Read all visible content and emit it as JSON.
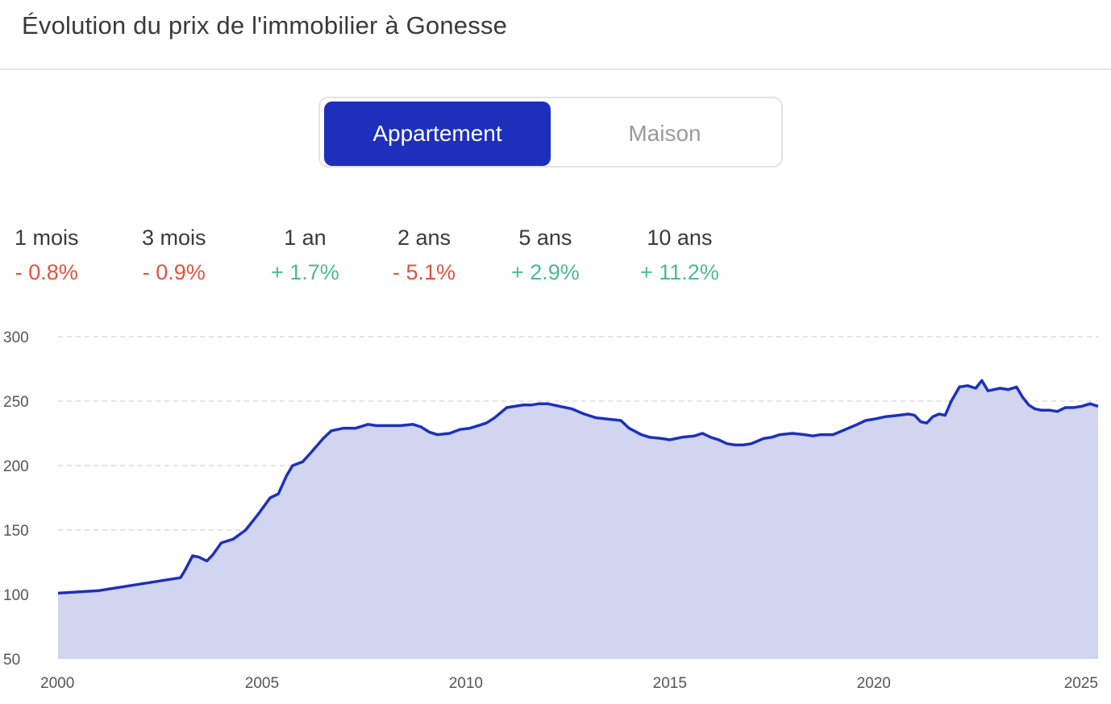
{
  "header": {
    "title": "Évolution du prix de l'immobilier à Gonesse"
  },
  "toggle": {
    "options": [
      {
        "label": "Appartement",
        "active": true
      },
      {
        "label": "Maison",
        "active": false
      }
    ],
    "active_color": "#1e30bb"
  },
  "stats": [
    {
      "label": "1 mois",
      "value": "- 0.8%",
      "trend": "down"
    },
    {
      "label": "3 mois",
      "value": "- 0.9%",
      "trend": "down"
    },
    {
      "label": "1 an",
      "value": "+ 1.7%",
      "trend": "up"
    },
    {
      "label": "2 ans",
      "value": "- 5.1%",
      "trend": "down"
    },
    {
      "label": "5 ans",
      "value": "+ 2.9%",
      "trend": "up"
    },
    {
      "label": "10 ans",
      "value": "+ 11.2%",
      "trend": "up"
    }
  ],
  "colors": {
    "down": "#e0533f",
    "up": "#4cbb8c",
    "line": "#1e30bb",
    "area": "#d1d5f0",
    "grid": "#dddddd"
  },
  "chart_data": {
    "type": "area",
    "title": "",
    "xlabel": "",
    "ylabel": "",
    "xlim": [
      2000,
      2025.5
    ],
    "ylim": [
      50,
      300
    ],
    "x_ticks": [
      "2000",
      "2005",
      "2010",
      "2015",
      "2020",
      "2025"
    ],
    "x_tick_values": [
      2000,
      2005,
      2010,
      2015,
      2020,
      2025
    ],
    "y_ticks": [
      "300",
      "250",
      "200",
      "150",
      "100",
      "50"
    ],
    "y_tick_values": [
      300,
      250,
      200,
      150,
      100,
      50
    ],
    "grid": true,
    "series": [
      {
        "x": [
          2000.0,
          2001.0,
          2002.0,
          2003.0,
          2003.1,
          2003.3,
          2003.45,
          2003.65,
          2003.8,
          2004.0,
          2004.3,
          2004.6,
          2004.9,
          2005.2,
          2005.4,
          2005.6,
          2005.75,
          2006.0,
          2006.2,
          2006.5,
          2006.7,
          2007.0,
          2007.3,
          2007.6,
          2007.8,
          2008.1,
          2008.4,
          2008.7,
          2008.9,
          2009.1,
          2009.3,
          2009.6,
          2009.85,
          2010.1,
          2010.3,
          2010.5,
          2010.7,
          2011.0,
          2011.2,
          2011.4,
          2011.6,
          2011.8,
          2012.0,
          2012.3,
          2012.6,
          2012.9,
          2013.2,
          2013.5,
          2013.8,
          2014.0,
          2014.3,
          2014.5,
          2014.8,
          2015.0,
          2015.3,
          2015.6,
          2015.8,
          2016.0,
          2016.2,
          2016.4,
          2016.6,
          2016.8,
          2017.0,
          2017.3,
          2017.5,
          2017.7,
          2018.0,
          2018.3,
          2018.5,
          2018.7,
          2019.0,
          2019.3,
          2019.6,
          2019.8,
          2020.0,
          2020.3,
          2020.6,
          2020.85,
          2021.0,
          2021.15,
          2021.3,
          2021.45,
          2021.6,
          2021.75,
          2021.9,
          2022.1,
          2022.3,
          2022.5,
          2022.65,
          2022.8,
          2022.95,
          2023.1,
          2023.3,
          2023.5,
          2023.65,
          2023.8,
          2023.95,
          2024.1,
          2024.3,
          2024.5,
          2024.7,
          2024.9,
          2025.1,
          2025.3,
          2025.5
        ],
        "y": [
          101,
          103,
          108,
          113,
          118,
          130,
          129,
          126,
          131,
          140,
          143,
          150,
          162,
          175,
          178,
          192,
          200,
          203,
          210,
          221,
          227,
          229,
          229,
          232,
          231,
          231,
          231,
          232,
          230,
          226,
          224,
          225,
          228,
          229,
          231,
          233,
          237,
          245,
          246,
          247,
          247,
          248,
          248,
          246,
          244,
          240,
          237,
          236,
          235,
          229,
          224,
          222,
          221,
          220,
          222,
          223,
          225,
          222,
          220,
          217,
          216,
          216,
          217,
          221,
          222,
          224,
          225,
          224,
          223,
          224,
          224,
          228,
          232,
          235,
          236,
          238,
          239,
          240,
          239,
          234,
          233,
          238,
          240,
          239,
          250,
          261,
          262,
          260,
          266,
          258,
          259,
          260,
          259,
          261,
          253,
          247,
          244,
          243,
          243,
          242,
          245,
          245,
          246,
          248,
          246
        ]
      }
    ]
  }
}
